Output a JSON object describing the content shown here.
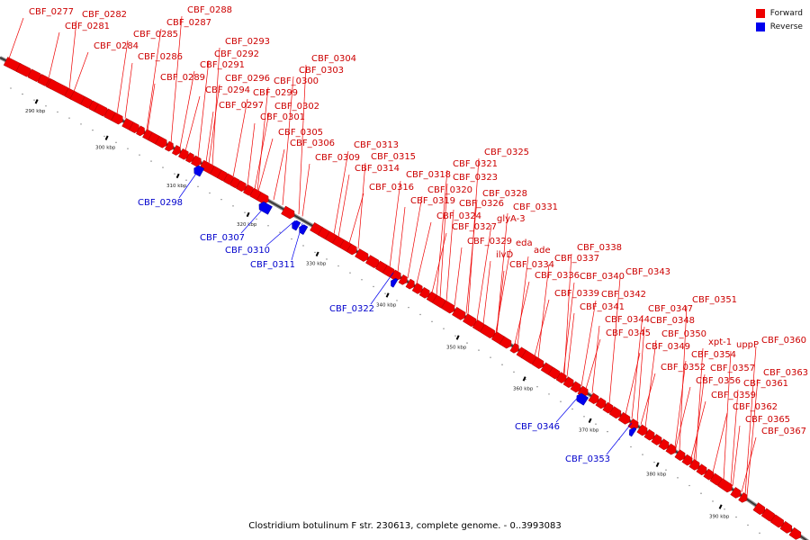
{
  "title": "Clostridium botulinum F str. 230613, complete genome. - 0..3993083",
  "legend": [
    {
      "label": "Forward",
      "color": "#ee0000"
    },
    {
      "label": "Reverse",
      "color": "#0000ee"
    }
  ],
  "scale": {
    "unit": "kbp",
    "ticks": [
      "290 kbp",
      "300 kbp",
      "310 kbp",
      "320 kbp",
      "330 kbp",
      "340 kbp",
      "350 kbp",
      "360 kbp",
      "370 kbp",
      "380 kbp",
      "390 kbp"
    ]
  },
  "forward_genes": [
    "CBF_0277",
    "CBF_0281",
    "CBF_0282",
    "CBF_0284",
    "CBF_0285",
    "CBF_0286",
    "CBF_0287",
    "CBF_0288",
    "CBF_0289",
    "CBF_0291",
    "CBF_0292",
    "CBF_0293",
    "CBF_0294",
    "CBF_0296",
    "CBF_0297",
    "CBF_0299",
    "CBF_0300",
    "CBF_0301",
    "CBF_0302",
    "CBF_0303",
    "CBF_0304",
    "CBF_0305",
    "CBF_0306",
    "CBF_0309",
    "CBF_0313",
    "CBF_0314",
    "CBF_0315",
    "CBF_0316",
    "CBF_0318",
    "CBF_0319",
    "CBF_0320",
    "CBF_0321",
    "CBF_0323",
    "CBF_0324",
    "CBF_0325",
    "CBF_0326",
    "CBF_0327",
    "CBF_0328",
    "CBF_0329",
    "glyA-3",
    "CBF_0331",
    "ilvD",
    "eda",
    "ade",
    "CBF_0334",
    "CBF_0336",
    "CBF_0337",
    "CBF_0338",
    "CBF_0339",
    "CBF_0340",
    "CBF_0341",
    "CBF_0342",
    "CBF_0343",
    "CBF_0344",
    "CBF_0345",
    "CBF_0347",
    "CBF_0348",
    "CBF_0349",
    "CBF_0350",
    "CBF_0351",
    "CBF_0352",
    "CBF_0354",
    "xpt-1",
    "CBF_0356",
    "CBF_0357",
    "uppP",
    "CBF_0359",
    "CBF_0360",
    "CBF_0361",
    "CBF_0362",
    "CBF_0363",
    "CBF_0365",
    "CBF_0367"
  ],
  "reverse_genes": [
    "CBF_0298",
    "CBF_0307",
    "CBF_0310",
    "CBF_0311",
    "CBF_0322",
    "CBF_0346",
    "CBF_0353"
  ]
}
